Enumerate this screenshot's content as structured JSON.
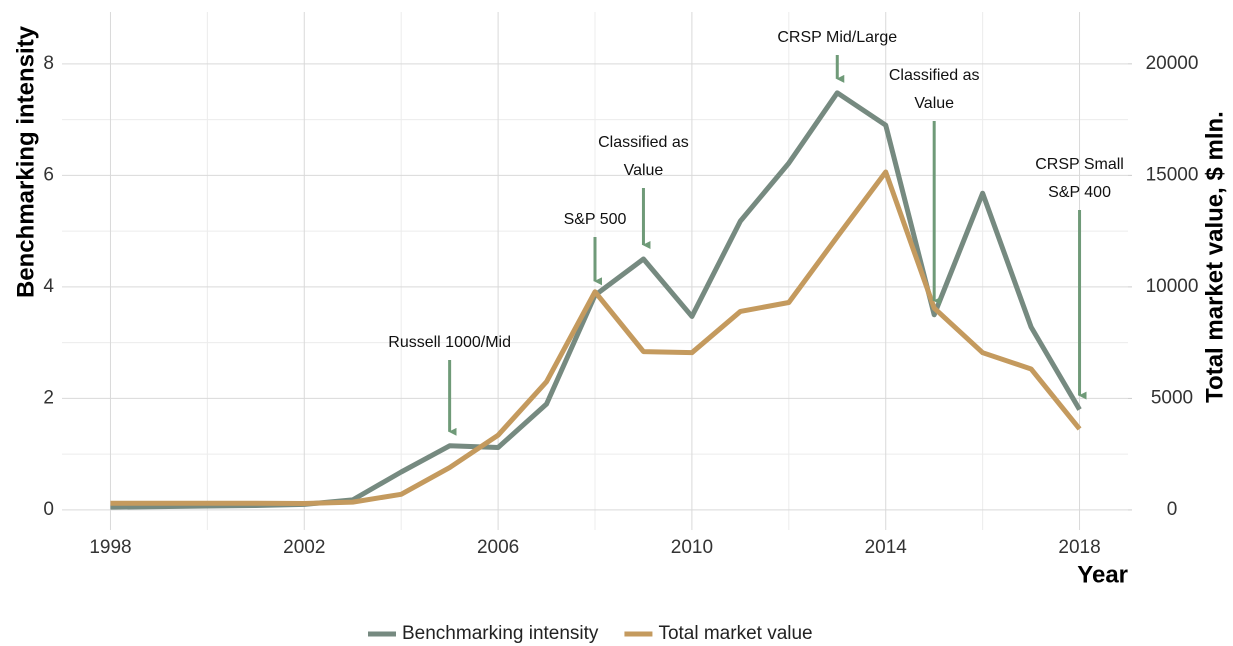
{
  "chart_data": {
    "type": "line",
    "x_label": "Year",
    "y_label": "Benchmarking intensity",
    "y2_label": "Total market value, $ mln.",
    "x": [
      1998,
      1999,
      2000,
      2001,
      2002,
      2003,
      2004,
      2005,
      2006,
      2007,
      2008,
      2009,
      2010,
      2011,
      2012,
      2013,
      2014,
      2015,
      2016,
      2017,
      2018
    ],
    "series": [
      {
        "name": "Benchmarking intensity",
        "color": "#768a80",
        "axis": "y",
        "values": [
          0.05,
          0.06,
          0.07,
          0.08,
          0.1,
          0.18,
          0.68,
          1.15,
          1.12,
          1.9,
          3.85,
          4.5,
          3.47,
          5.18,
          6.22,
          7.48,
          6.9,
          3.5,
          5.68,
          3.28,
          1.8
        ]
      },
      {
        "name": "Total market value",
        "color": "#c49a5e",
        "axis": "y2",
        "values": [
          300,
          300,
          300,
          300,
          290,
          350,
          700,
          1900,
          3350,
          5750,
          9780,
          7100,
          7050,
          8900,
          9300,
          12250,
          15150,
          9050,
          7050,
          6320,
          3630
        ]
      }
    ],
    "xlim": [
      1997,
      2019
    ],
    "xticks": [
      1998,
      2002,
      2006,
      2010,
      2014,
      2018
    ],
    "minor_xticks": [
      2000,
      2004,
      2008,
      2012,
      2016
    ],
    "ylim": [
      -0.36,
      8.93
    ],
    "yticks": [
      0,
      2,
      4,
      6,
      8
    ],
    "minor_yticks": [
      1,
      3,
      5,
      7
    ],
    "y2lim": [
      -900,
      22325
    ],
    "y2ticks": [
      0,
      5000,
      10000,
      15000,
      20000
    ],
    "grid": true,
    "legend": "bottom",
    "annotation_color": "#6f9a78",
    "annotations": [
      {
        "x": 2005,
        "lines": [
          "Russell 1000/Mid"
        ]
      },
      {
        "x": 2008,
        "lines": [
          "S&P 500"
        ]
      },
      {
        "x": 2009,
        "lines": [
          "Classified as",
          "Value"
        ]
      },
      {
        "x": 2013,
        "lines": [
          "CRSP Mid/Large"
        ]
      },
      {
        "x": 2015,
        "lines": [
          "Classified as",
          "Value"
        ]
      },
      {
        "x": 2018,
        "lines": [
          "CRSP Small",
          "S&P 400"
        ]
      }
    ]
  }
}
